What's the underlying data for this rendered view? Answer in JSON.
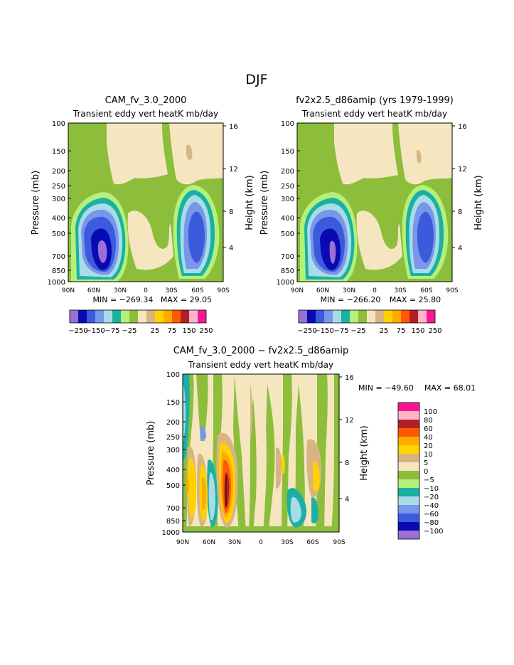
{
  "page_title": "DJF",
  "colors": {
    "neg100": "#9a6fd6",
    "neg80": "#0a0ab4",
    "neg60": "#3c5adc",
    "neg40": "#7896ea",
    "neg20": "#a8dce6",
    "neg10": "#1ab0a4",
    "neg5": "#b4f07a",
    "neg0": "#8cbe3c",
    "pos0": "#f5e6c0",
    "pos5": "#d8b483",
    "pos10": "#ffd200",
    "pos20": "#ffaa00",
    "pos40": "#ff5a00",
    "pos60": "#b41e28",
    "pos80": "#ffb4c8",
    "pos100": "#ff1493"
  },
  "chart_data": [
    {
      "type": "contour",
      "title": "CAM_fv_3.0_2000",
      "subtitle": "Transient eddy vert heatK mb/day",
      "ylabel": "Pressure (mb)",
      "ylabel_right": "Height (km)",
      "x_ticks": [
        "90N",
        "60N",
        "30N",
        "0",
        "30S",
        "60S",
        "90S"
      ],
      "y_ticks": [
        "100",
        "150",
        "200",
        "250",
        "300",
        "400",
        "500",
        "700",
        "850",
        "1000"
      ],
      "y_right_ticks": [
        "16",
        "12",
        "8",
        "4"
      ],
      "min_text": "MIN = −269.34",
      "max_text": "MAX = 29.05",
      "colorbar_labels": [
        "−250",
        "−150",
        "−75",
        "−25",
        "25",
        "75",
        "150",
        "250"
      ]
    },
    {
      "type": "contour",
      "title": "fv2x2.5_d86amip (yrs 1979-1999)",
      "subtitle": "Transient eddy vert heatK mb/day",
      "ylabel": "Pressure (mb)",
      "ylabel_right": "Height (km)",
      "x_ticks": [
        "90N",
        "60N",
        "30N",
        "0",
        "30S",
        "60S",
        "90S"
      ],
      "y_ticks": [
        "100",
        "150",
        "200",
        "250",
        "300",
        "400",
        "500",
        "700",
        "850",
        "1000"
      ],
      "y_right_ticks": [
        "16",
        "12",
        "8",
        "4"
      ],
      "min_text": "MIN = −266.20",
      "max_text": "MAX = 25.80",
      "colorbar_labels": [
        "−250",
        "−150",
        "−75",
        "−25",
        "25",
        "75",
        "150",
        "250"
      ]
    },
    {
      "type": "contour",
      "title": "CAM_fv_3.0_2000 − fv2x2.5_d86amip",
      "subtitle": "Transient eddy vert heatK mb/day",
      "ylabel": "Pressure (mb)",
      "ylabel_right": "Height (km)",
      "x_ticks": [
        "90N",
        "60N",
        "30N",
        "0",
        "30S",
        "60S",
        "90S"
      ],
      "y_ticks": [
        "100",
        "150",
        "200",
        "250",
        "300",
        "400",
        "500",
        "700",
        "850",
        "1000"
      ],
      "y_right_ticks": [
        "16",
        "12",
        "8",
        "4"
      ],
      "min_text": "MIN = −49.60",
      "max_text": "MAX = 68.01",
      "colorbar_labels": [
        "100",
        "80",
        "60",
        "40",
        "20",
        "10",
        "5",
        "0",
        "−5",
        "−10",
        "−20",
        "−40",
        "−60",
        "−80",
        "−100"
      ]
    }
  ]
}
